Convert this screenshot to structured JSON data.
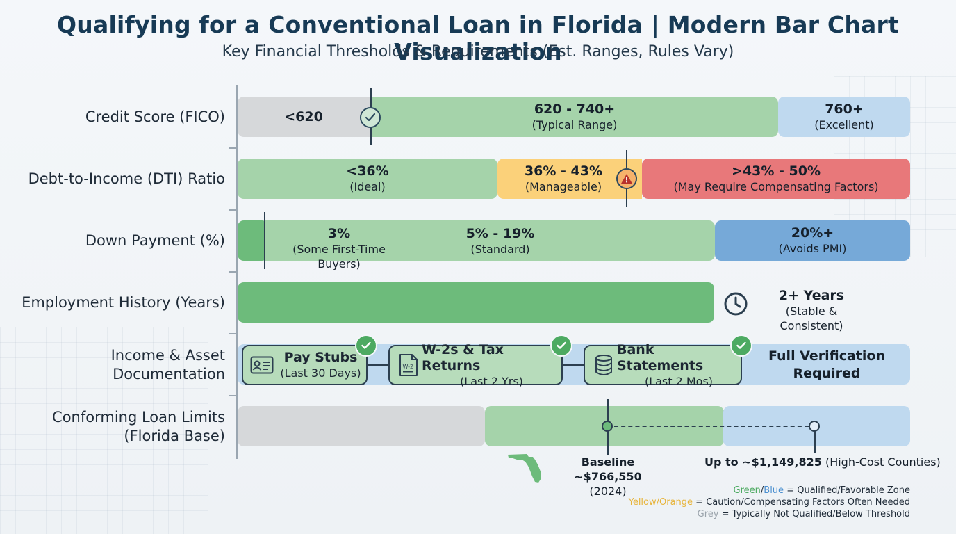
{
  "title": "Qualifying for a Conventional Loan in Florida | Modern Bar Chart Visualization",
  "subtitle": "Key Financial Thresholds & Requirements (Est. Ranges, Rules Vary)",
  "colors": {
    "grey": "#d6d8da",
    "green": "#a5d3aa",
    "green_dark": "#6dbb7b",
    "blue_light": "#bfd9ef",
    "blue_mid": "#76a9d8",
    "yellow": "#fbd17a",
    "red": "#e8787a",
    "title": "#173a55"
  },
  "chart_data": {
    "type": "bar",
    "orientation": "horizontal-segmented",
    "title": "Qualifying for a Conventional Loan in Florida | Modern Bar Chart Visualization",
    "subtitle": "Key Financial Thresholds & Requirements (Est. Ranges, Rules Vary)",
    "rows": [
      {
        "label": "Credit Score (FICO)",
        "segments": [
          {
            "value": "<620",
            "note": "",
            "zone": "not-qualified"
          },
          {
            "value": "620 - 740+",
            "note": "(Typical Range)",
            "zone": "qualified"
          },
          {
            "value": "760+",
            "note": "(Excellent)",
            "zone": "favorable"
          }
        ],
        "marker": {
          "icon": "check-circle-icon",
          "at": "620"
        }
      },
      {
        "label": "Debt-to-Income (DTI) Ratio",
        "segments": [
          {
            "value": "<36%",
            "note": "(Ideal)",
            "zone": "qualified"
          },
          {
            "value": "36% - 43%",
            "note": "(Manageable)",
            "zone": "caution"
          },
          {
            "value": ">43% - 50%",
            "note": "(May Require Compensating Factors)",
            "zone": "compensating"
          }
        ],
        "marker": {
          "icon": "warning-icon",
          "at": "43%"
        }
      },
      {
        "label": "Down Payment (%)",
        "segments": [
          {
            "value": "3%",
            "note": "(Some First-Time Buyers)",
            "zone": "qualified"
          },
          {
            "value": "5% - 19%",
            "note": "(Standard)",
            "zone": "qualified"
          },
          {
            "value": "20%+",
            "note": "(Avoids PMI)",
            "zone": "favorable"
          }
        ],
        "marker": {
          "at": "3%"
        }
      },
      {
        "label": "Employment History (Years)",
        "value": "2+ Years",
        "note": "(Stable & Consistent)",
        "icon": "clock-icon"
      },
      {
        "label_line1": "Income & Asset",
        "label_line2": "Documentation",
        "documents": [
          {
            "title": "Pay Stubs",
            "note": "(Last 30 Days)",
            "icon": "id-card-icon"
          },
          {
            "title": "W-2s & Tax Returns",
            "note": "(Last 2 Yrs)",
            "icon": "w2-form-icon",
            "icon_text": "W-2"
          },
          {
            "title": "Bank Statements",
            "note": "(Last 2 Mos)",
            "icon": "database-icon"
          }
        ],
        "result_line1": "Full Verification",
        "result_line2": "Required"
      },
      {
        "label_line1": "Conforming Loan Limits",
        "label_line2": "(Florida Base)",
        "baseline": {
          "value": 766550,
          "label": "Baseline ~$766,550",
          "note": "(2024)"
        },
        "high_cost": {
          "value": 1149825,
          "label": "Up to ~$1,149,825",
          "note": "(High-Cost Counties)"
        }
      }
    ],
    "legend": {
      "line1": {
        "key1": "Green",
        "sep": "/",
        "key2": "Blue",
        "text": " = Qualified/Favorable Zone"
      },
      "line2": {
        "key": "Yellow/Orange",
        "text": " = Caution/Compensating Factors Often Needed"
      },
      "line3": {
        "key": "Grey",
        "text": " = Typically Not Qualified/Below Threshold"
      }
    }
  }
}
